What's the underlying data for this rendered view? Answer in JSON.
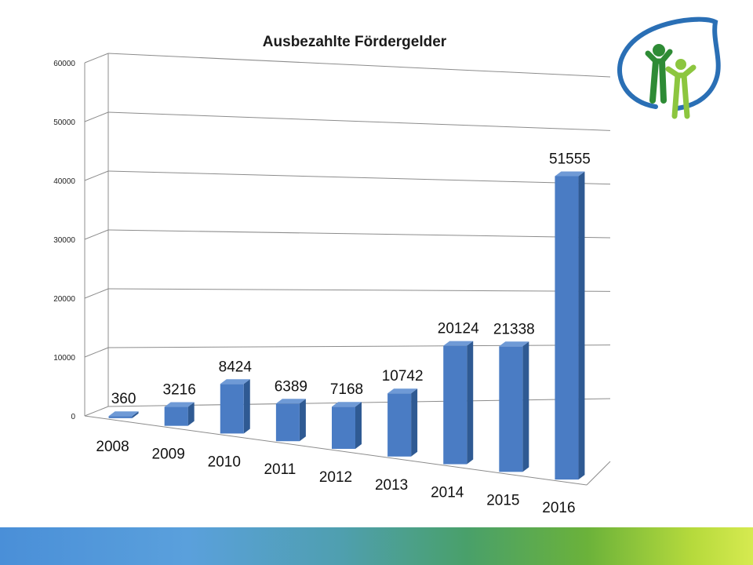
{
  "chart_data": {
    "type": "bar",
    "title": "Ausbezahlte Fördergelder",
    "categories": [
      "2008",
      "2009",
      "2010",
      "2011",
      "2012",
      "2013",
      "2014",
      "2015",
      "2016"
    ],
    "values": [
      360,
      3216,
      8424,
      6389,
      7168,
      10742,
      20124,
      21338,
      51555
    ],
    "data_labels": [
      "360",
      "3216",
      "8424",
      "6389",
      "7168",
      "10742",
      "20124",
      "21338",
      "51555"
    ],
    "yticks": [
      "0",
      "10000",
      "20000",
      "30000",
      "40000",
      "50000",
      "60000"
    ],
    "ylim": [
      0,
      60000
    ],
    "grid": true,
    "legend": "none",
    "style": "3d",
    "colors": {
      "bar_front": "#4a7cc4",
      "bar_top": "#6f9ad6",
      "bar_side": "#2f5a93",
      "grid": "#8c8c8c"
    }
  },
  "logo": {
    "icon": "family-leaf-logo-icon",
    "colors": {
      "leaf_outline": "#2a6fb5",
      "figure_dark": "#2e8b35",
      "figure_light": "#8cc63f"
    }
  }
}
